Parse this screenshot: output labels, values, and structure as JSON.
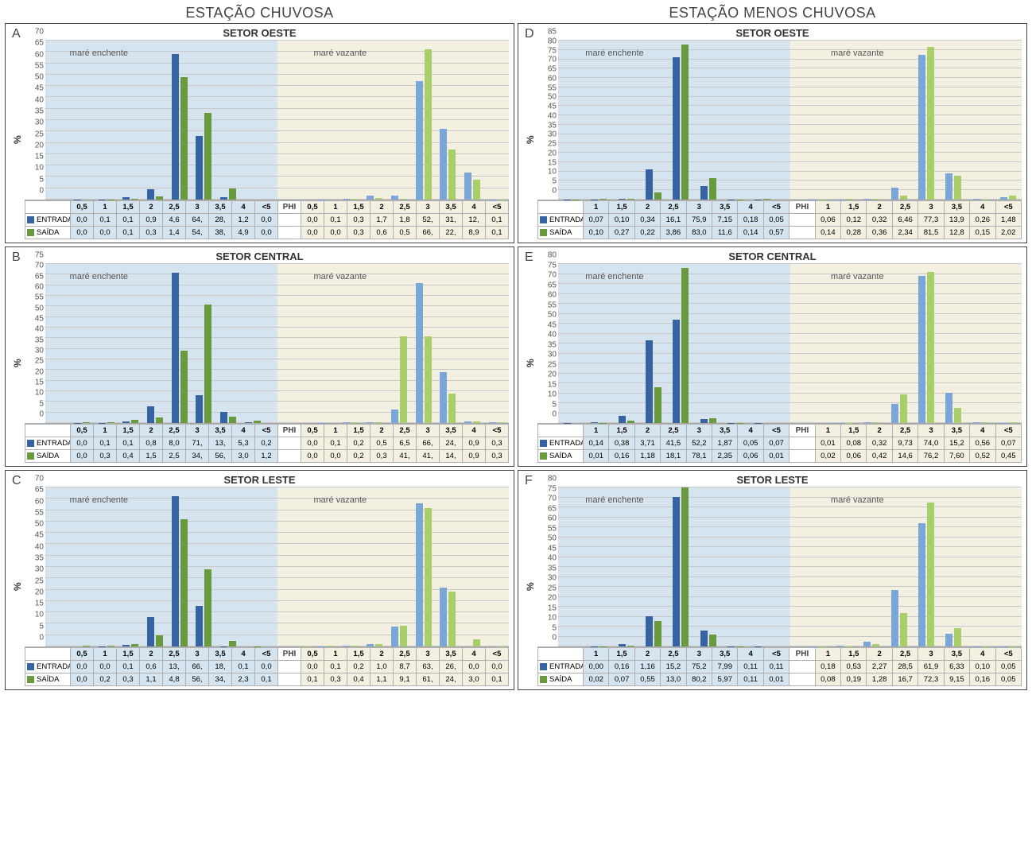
{
  "layout": {
    "col_titles": [
      "ESTAÇÃO CHUVOSA",
      "ESTAÇÃO MENOS CHUVOSA"
    ],
    "ylabel": "%",
    "phi_label": "PHI",
    "tide_labels": [
      "maré enchente",
      "maré vazante"
    ],
    "series_labels": {
      "entrada": "ENTRADA",
      "saida": "SAÍDA"
    }
  },
  "style": {
    "bg_left": "#d6e4ef",
    "bg_right": "#f3efe1",
    "grid_color": "#c8c8c8",
    "entrada_colors": [
      "#3664a3",
      "#7aa6d8"
    ],
    "saida_colors": [
      "#6a9a3e",
      "#a9cf6a"
    ],
    "axis_text_color": "#555",
    "table_border": "#b0b0b0",
    "title_fontsize": 13,
    "col_title_fontsize": 18,
    "tick_fontsize": 10,
    "cell_fontsize": 9.5
  },
  "panels": [
    {
      "id": "A",
      "title": "SETOR OESTE",
      "col": 0,
      "categories": [
        "0,5",
        "1",
        "1,5",
        "2",
        "2,5",
        "3",
        "3,5",
        "4",
        "<5"
      ],
      "ymax": 70,
      "ystep": 5,
      "enchente": {
        "entrada": [
          0.0,
          0.1,
          0.1,
          0.9,
          4.6,
          64,
          28,
          1.2,
          0.0
        ],
        "saida": [
          0.0,
          0.0,
          0.1,
          0.3,
          1.4,
          54,
          38,
          4.9,
          0.0
        ],
        "entrada_disp": [
          "0,0",
          "0,1",
          "0,1",
          "0,9",
          "4,6",
          "64,",
          "28,",
          "1,2",
          "0,0"
        ],
        "saida_disp": [
          "0,0",
          "0,0",
          "0,1",
          "0,3",
          "1,4",
          "54,",
          "38,",
          "4,9",
          "0,0"
        ]
      },
      "vazante": {
        "entrada": [
          0.0,
          0.1,
          0.3,
          1.7,
          1.8,
          52,
          31,
          12,
          0.1
        ],
        "saida": [
          0.0,
          0.0,
          0.3,
          0.6,
          0.5,
          66,
          22,
          8.9,
          0.1
        ],
        "entrada_disp": [
          "0,0",
          "0,1",
          "0,3",
          "1,7",
          "1,8",
          "52,",
          "31,",
          "12,",
          "0,1"
        ],
        "saida_disp": [
          "0,0",
          "0,0",
          "0,3",
          "0,6",
          "0,5",
          "66,",
          "22,",
          "8,9",
          "0,1"
        ]
      }
    },
    {
      "id": "D",
      "title": "SETOR OESTE",
      "col": 1,
      "categories": [
        "1",
        "1,5",
        "2",
        "2,5",
        "3",
        "3,5",
        "4",
        "<5"
      ],
      "ymax": 85,
      "ystep": 5,
      "enchente": {
        "entrada": [
          0.07,
          0.1,
          0.34,
          16.1,
          75.9,
          7.15,
          0.18,
          0.05
        ],
        "saida": [
          0.1,
          0.27,
          0.22,
          3.86,
          83.0,
          11.6,
          0.14,
          0.57
        ],
        "entrada_disp": [
          "0,07",
          "0,10",
          "0,34",
          "16,1",
          "75,9",
          "7,15",
          "0,18",
          "0,05"
        ],
        "saida_disp": [
          "0,10",
          "0,27",
          "0,22",
          "3,86",
          "83,0",
          "11,6",
          "0,14",
          "0,57"
        ]
      },
      "vazante": {
        "entrada": [
          0.06,
          0.12,
          0.32,
          6.46,
          77.3,
          13.9,
          0.26,
          1.48
        ],
        "saida": [
          0.14,
          0.28,
          0.36,
          2.34,
          81.5,
          12.8,
          0.15,
          2.02
        ],
        "entrada_disp": [
          "0,06",
          "0,12",
          "0,32",
          "6,46",
          "77,3",
          "13,9",
          "0,26",
          "1,48"
        ],
        "saida_disp": [
          "0,14",
          "0,28",
          "0,36",
          "2,34",
          "81,5",
          "12,8",
          "0,15",
          "2,02"
        ]
      }
    },
    {
      "id": "B",
      "title": "SETOR CENTRAL",
      "col": 0,
      "categories": [
        "0,5",
        "1",
        "1,5",
        "2",
        "2,5",
        "3",
        "3,5",
        "4",
        "<5"
      ],
      "ymax": 75,
      "ystep": 5,
      "enchente": {
        "entrada": [
          0.0,
          0.1,
          0.1,
          0.8,
          8.0,
          71,
          13,
          5.3,
          0.2
        ],
        "saida": [
          0.0,
          0.3,
          0.4,
          1.5,
          2.5,
          34,
          56,
          3.0,
          1.2
        ],
        "entrada_disp": [
          "0,0",
          "0,1",
          "0,1",
          "0,8",
          "8,0",
          "71,",
          "13,",
          "5,3",
          "0,2"
        ],
        "saida_disp": [
          "0,0",
          "0,3",
          "0,4",
          "1,5",
          "2,5",
          "34,",
          "56,",
          "3,0",
          "1,2"
        ]
      },
      "vazante": {
        "entrada": [
          0.0,
          0.1,
          0.2,
          0.5,
          6.5,
          66,
          24,
          0.9,
          0.3
        ],
        "saida": [
          0.0,
          0.0,
          0.2,
          0.3,
          41,
          41,
          14,
          0.9,
          0.3
        ],
        "entrada_disp": [
          "0,0",
          "0,1",
          "0,2",
          "0,5",
          "6,5",
          "66,",
          "24,",
          "0,9",
          "0,3"
        ],
        "saida_disp": [
          "0,0",
          "0,0",
          "0,2",
          "0,3",
          "41,",
          "41,",
          "14,",
          "0,9",
          "0,3"
        ]
      }
    },
    {
      "id": "E",
      "title": "SETOR CENTRAL",
      "col": 1,
      "categories": [
        "1",
        "1,5",
        "2",
        "2,5",
        "3",
        "3,5",
        "4",
        "<5"
      ],
      "ymax": 80,
      "ystep": 5,
      "enchente": {
        "entrada": [
          0.14,
          0.38,
          3.71,
          41.5,
          52.2,
          1.87,
          0.05,
          0.07
        ],
        "saida": [
          0.01,
          0.16,
          1.18,
          18.1,
          78.1,
          2.35,
          0.06,
          0.01
        ],
        "entrada_disp": [
          "0,14",
          "0,38",
          "3,71",
          "41,5",
          "52,2",
          "1,87",
          "0,05",
          "0,07"
        ],
        "saida_disp": [
          "0,01",
          "0,16",
          "1,18",
          "18,1",
          "78,1",
          "2,35",
          "0,06",
          "0,01"
        ]
      },
      "vazante": {
        "entrada": [
          0.01,
          0.08,
          0.32,
          9.73,
          74.0,
          15.2,
          0.56,
          0.07
        ],
        "saida": [
          0.02,
          0.06,
          0.42,
          14.6,
          76.2,
          7.6,
          0.52,
          0.45
        ],
        "entrada_disp": [
          "0,01",
          "0,08",
          "0,32",
          "9,73",
          "74,0",
          "15,2",
          "0,56",
          "0,07"
        ],
        "saida_disp": [
          "0,02",
          "0,06",
          "0,42",
          "14,6",
          "76,2",
          "7,60",
          "0,52",
          "0,45"
        ]
      }
    },
    {
      "id": "C",
      "title": "SETOR LESTE",
      "col": 0,
      "categories": [
        "0,5",
        "1",
        "1,5",
        "2",
        "2,5",
        "3",
        "3,5",
        "4",
        "<5"
      ],
      "ymax": 70,
      "ystep": 5,
      "enchente": {
        "entrada": [
          0.0,
          0.0,
          0.1,
          0.6,
          13,
          66,
          18,
          0.1,
          0.0
        ],
        "saida": [
          0.0,
          0.2,
          0.3,
          1.1,
          4.8,
          56,
          34,
          2.3,
          0.1
        ],
        "entrada_disp": [
          "0,0",
          "0,0",
          "0,1",
          "0,6",
          "13,",
          "66,",
          "18,",
          "0,1",
          "0,0"
        ],
        "saida_disp": [
          "0,0",
          "0,2",
          "0,3",
          "1,1",
          "4,8",
          "56,",
          "34,",
          "2,3",
          "0,1"
        ]
      },
      "vazante": {
        "entrada": [
          0.0,
          0.1,
          0.2,
          1.0,
          8.7,
          63,
          26,
          0.0,
          0.0
        ],
        "saida": [
          0.1,
          0.3,
          0.4,
          1.1,
          9.1,
          61,
          24,
          3.0,
          0.1
        ],
        "entrada_disp": [
          "0,0",
          "0,1",
          "0,2",
          "1,0",
          "8,7",
          "63,",
          "26,",
          "0,0",
          "0,0"
        ],
        "saida_disp": [
          "0,1",
          "0,3",
          "0,4",
          "1,1",
          "9,1",
          "61,",
          "24,",
          "3,0",
          "0,1"
        ]
      }
    },
    {
      "id": "F",
      "title": "SETOR LESTE",
      "col": 1,
      "categories": [
        "1",
        "1,5",
        "2",
        "2,5",
        "3",
        "3,5",
        "4",
        "<5"
      ],
      "ymax": 80,
      "ystep": 5,
      "enchente": {
        "entrada": [
          0.0,
          0.16,
          1.16,
          15.2,
          75.2,
          7.99,
          0.11,
          0.11
        ],
        "saida": [
          0.02,
          0.07,
          0.55,
          13.0,
          80.2,
          5.97,
          0.11,
          0.01
        ],
        "entrada_disp": [
          "0,00",
          "0,16",
          "1,16",
          "15,2",
          "75,2",
          "7,99",
          "0,11",
          "0,11"
        ],
        "saida_disp": [
          "0,02",
          "0,07",
          "0,55",
          "13,0",
          "80,2",
          "5,97",
          "0,11",
          "0,01"
        ]
      },
      "vazante": {
        "entrada": [
          0.18,
          0.53,
          2.27,
          28.5,
          61.9,
          6.33,
          0.1,
          0.05
        ],
        "saida": [
          0.08,
          0.19,
          1.28,
          16.7,
          72.3,
          9.15,
          0.16,
          0.05
        ],
        "entrada_disp": [
          "0,18",
          "0,53",
          "2,27",
          "28,5",
          "61,9",
          "6,33",
          "0,10",
          "0,05"
        ],
        "saida_disp": [
          "0,08",
          "0,19",
          "1,28",
          "16,7",
          "72,3",
          "9,15",
          "0,16",
          "0,05"
        ]
      }
    }
  ]
}
